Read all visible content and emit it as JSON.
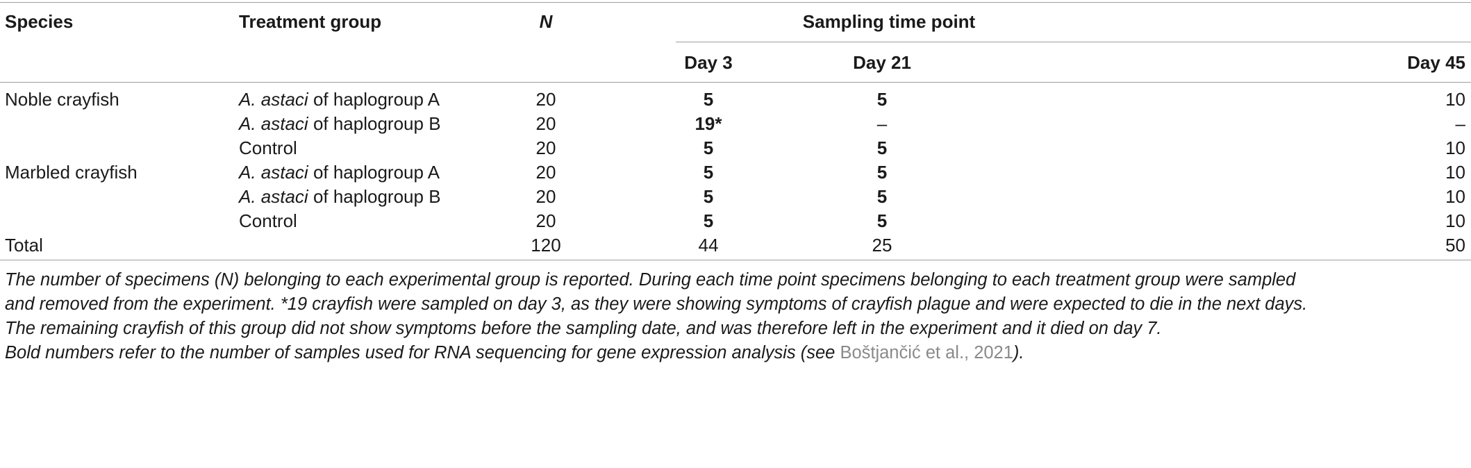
{
  "table": {
    "headers": {
      "species": "Species",
      "treatment": "Treatment group",
      "n": "N",
      "sampling": "Sampling time point",
      "day3": "Day 3",
      "day21": "Day 21",
      "day45": "Day 45"
    },
    "rows": [
      {
        "species": "Noble crayfish",
        "treatment_italic": "A. astaci",
        "treatment_rest": " of haplogroup A",
        "n": "20",
        "day3": "5",
        "day21": "5",
        "day45": "10"
      },
      {
        "species": "",
        "treatment_italic": "A. astaci",
        "treatment_rest": " of haplogroup B",
        "n": "20",
        "day3": "19*",
        "day21": "–",
        "day45": "–"
      },
      {
        "species": "",
        "treatment_italic": "",
        "treatment_rest": "Control",
        "n": "20",
        "day3": "5",
        "day21": "5",
        "day45": "10"
      },
      {
        "species": "Marbled crayfish",
        "treatment_italic": "A. astaci",
        "treatment_rest": " of haplogroup A",
        "n": "20",
        "day3": "5",
        "day21": "5",
        "day45": "10"
      },
      {
        "species": "",
        "treatment_italic": "A. astaci",
        "treatment_rest": " of haplogroup B",
        "n": "20",
        "day3": "5",
        "day21": "5",
        "day45": "10"
      },
      {
        "species": "",
        "treatment_italic": "",
        "treatment_rest": "Control",
        "n": "20",
        "day3": "5",
        "day21": "5",
        "day45": "10"
      },
      {
        "species": "Total",
        "treatment_italic": "",
        "treatment_rest": "",
        "n": "120",
        "day3": "44",
        "day21": "25",
        "day45": "50"
      }
    ]
  },
  "footnotes": {
    "line1": "The number of specimens (N) belonging to each experimental group is reported. During each time point specimens belonging to each treatment group were sampled",
    "line2": "and removed from the experiment. *19 crayfish were sampled on day 3, as they were showing symptoms of crayfish plague and were expected to die in the next days.",
    "line3": "The remaining crayfish of this group did not show symptoms before the sampling date, and was therefore left in the experiment and it died on day 7.",
    "line4_pre": "Bold numbers refer to the number of samples used for RNA sequencing for gene expression analysis (see ",
    "line4_cite": "Boštjančić et al., 2021",
    "line4_post": ")."
  }
}
